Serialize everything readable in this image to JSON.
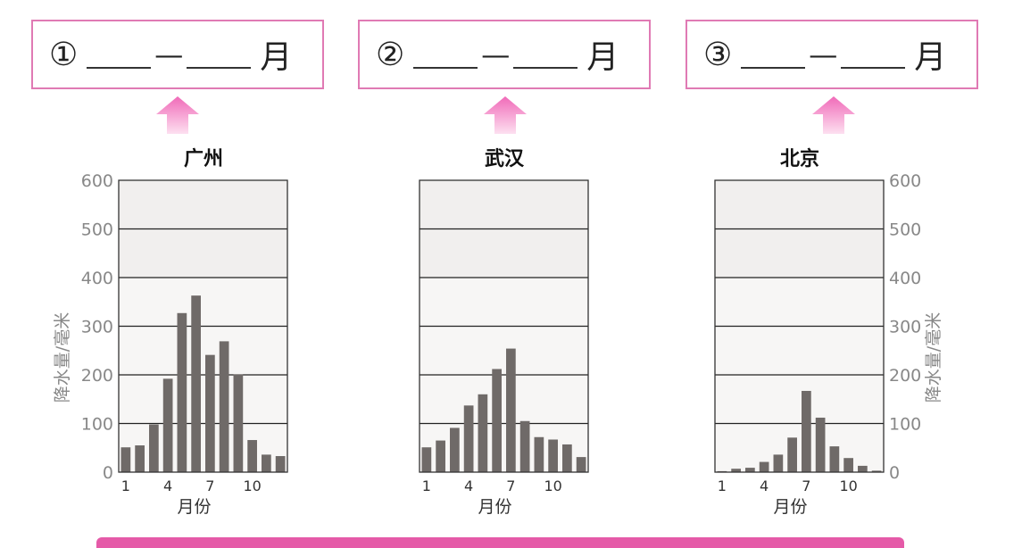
{
  "questions": [
    {
      "number": "①",
      "dash": "—",
      "unit": "月"
    },
    {
      "number": "②",
      "dash": "—",
      "unit": "月"
    },
    {
      "number": "③",
      "dash": "—",
      "unit": "月"
    }
  ],
  "colors": {
    "box_border": "#e07ab4",
    "arrow": "#f07cc0",
    "bar": "#6f6a68",
    "bottom_bar": "#e55aa8"
  },
  "chart_data": [
    {
      "type": "bar",
      "title": "广州",
      "xlabel": "月份",
      "ylabel": "降水量/毫米",
      "categories": [
        1,
        2,
        3,
        4,
        5,
        6,
        7,
        8,
        9,
        10,
        11,
        12
      ],
      "x_tick_labels": [
        "1",
        "4",
        "7",
        "10"
      ],
      "y_tick_labels": [
        "0",
        "100",
        "200",
        "300",
        "400",
        "500",
        "600"
      ],
      "values": [
        51,
        55,
        98,
        192,
        327,
        363,
        241,
        269,
        201,
        66,
        36,
        33
      ],
      "ylim": [
        0,
        600
      ],
      "grid": true,
      "y_axis_side": "left"
    },
    {
      "type": "bar",
      "title": "武汉",
      "xlabel": "月份",
      "ylabel": "",
      "categories": [
        1,
        2,
        3,
        4,
        5,
        6,
        7,
        8,
        9,
        10,
        11,
        12
      ],
      "x_tick_labels": [
        "1",
        "4",
        "7",
        "10"
      ],
      "values": [
        51,
        65,
        91,
        137,
        160,
        212,
        254,
        105,
        72,
        67,
        57,
        31
      ],
      "ylim": [
        0,
        600
      ],
      "grid": true
    },
    {
      "type": "bar",
      "title": "北京",
      "xlabel": "月份",
      "ylabel": "降水量/毫米",
      "categories": [
        1,
        2,
        3,
        4,
        5,
        6,
        7,
        8,
        9,
        10,
        11,
        12
      ],
      "x_tick_labels": [
        "1",
        "4",
        "7",
        "10"
      ],
      "y_tick_labels": [
        "0",
        "100",
        "200",
        "300",
        "400",
        "500",
        "600"
      ],
      "values": [
        2,
        7,
        9,
        21,
        36,
        71,
        167,
        112,
        53,
        29,
        13,
        3
      ],
      "ylim": [
        0,
        600
      ],
      "grid": true,
      "y_axis_side": "right"
    }
  ]
}
